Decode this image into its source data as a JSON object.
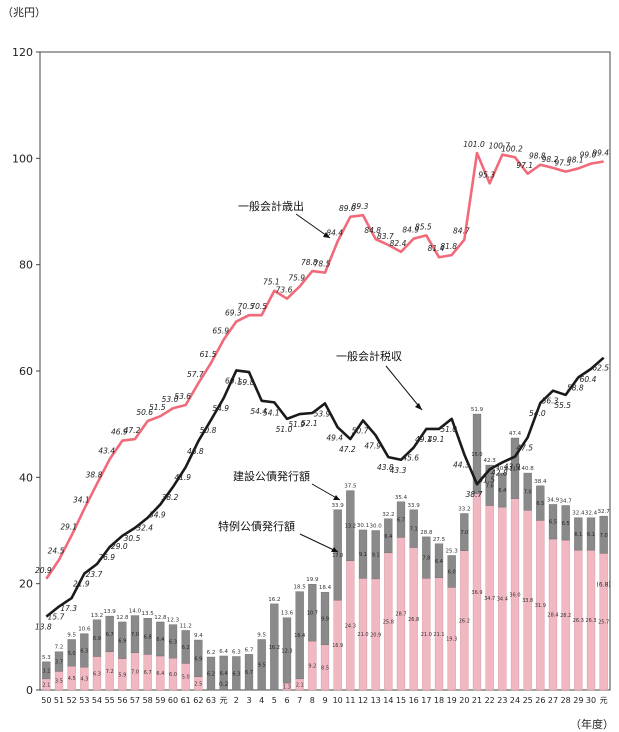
{
  "chart_data": {
    "type": "bar",
    "y_unit": "（兆円）",
    "x_unit": "（年度）",
    "ylim": [
      0,
      120
    ],
    "yticks": [
      0,
      20,
      40,
      60,
      80,
      100,
      120
    ],
    "grid": false,
    "categories": [
      "50",
      "51",
      "52",
      "53",
      "54",
      "55",
      "56",
      "57",
      "58",
      "59",
      "60",
      "61",
      "62",
      "63",
      "元",
      "2",
      "3",
      "4",
      "5",
      "6",
      "7",
      "8",
      "9",
      "10",
      "11",
      "12",
      "13",
      "14",
      "15",
      "16",
      "17",
      "18",
      "19",
      "20",
      "21",
      "22",
      "23",
      "24",
      "25",
      "26",
      "27",
      "28",
      "29",
      "30",
      "元"
    ],
    "special_era_label": "0.2",
    "series": [
      {
        "name": "一般会計歳出",
        "kind": "line",
        "color": "#f06a7a",
        "values": [
          20.9,
          24.5,
          29.1,
          34.1,
          38.8,
          43.4,
          46.9,
          47.2,
          50.6,
          51.5,
          53.0,
          53.6,
          57.7,
          61.5,
          65.9,
          69.3,
          70.5,
          70.5,
          75.1,
          73.6,
          75.9,
          78.8,
          78.5,
          84.4,
          89.0,
          89.3,
          84.8,
          83.7,
          82.4,
          84.9,
          85.5,
          81.4,
          81.8,
          84.7,
          101.0,
          95.3,
          100.7,
          100.2,
          97.1,
          98.8,
          98.2,
          97.5,
          98.1,
          99.0,
          99.4
        ]
      },
      {
        "name": "一般会計税収",
        "kind": "line",
        "color": "#1a1a1a",
        "values": [
          13.8,
          15.7,
          17.3,
          21.9,
          23.7,
          26.9,
          29.0,
          30.5,
          32.4,
          34.9,
          38.2,
          41.9,
          46.8,
          50.8,
          54.9,
          60.1,
          59.8,
          54.4,
          54.1,
          51.0,
          51.9,
          52.1,
          53.9,
          49.4,
          47.2,
          50.7,
          47.9,
          43.8,
          43.3,
          45.6,
          49.1,
          49.1,
          51.0,
          44.3,
          38.7,
          41.5,
          42.8,
          43.9,
          47.5,
          54.0,
          56.3,
          55.5,
          58.8,
          60.4,
          62.5
        ]
      },
      {
        "name": "建設公債発行額",
        "kind": "bar",
        "color": "#8a8a8a",
        "values": [
          3.2,
          3.7,
          5.0,
          6.3,
          6.9,
          6.7,
          6.9,
          7.0,
          6.8,
          6.4,
          6.3,
          6.2,
          6.9,
          6.2,
          6.4,
          6.3,
          6.7,
          9.5,
          16.2,
          12.3,
          16.4,
          10.7,
          9.9,
          17.0,
          13.2,
          9.1,
          9.1,
          6.4,
          6.7,
          7.1,
          7.8,
          6.4,
          6.0,
          7.0,
          15.0,
          7.6,
          6.4,
          11.4,
          7.0,
          6.5,
          6.5,
          6.5,
          6.1,
          6.1,
          7.0
        ]
      },
      {
        "name": "特例公債発行額",
        "kind": "bar",
        "color": "#f2b8c2",
        "values": [
          2.1,
          3.5,
          4.5,
          4.3,
          6.3,
          7.2,
          5.9,
          7.0,
          6.7,
          6.4,
          6.0,
          5.0,
          2.5,
          0,
          0,
          0,
          0,
          0,
          0,
          1.3,
          2.1,
          9.2,
          8.5,
          16.9,
          24.3,
          21.0,
          20.9,
          25.8,
          28.7,
          26.8,
          21.0,
          21.1,
          19.3,
          26.2,
          36.9,
          34.7,
          34.4,
          36.0,
          33.8,
          31.9,
          28.4,
          28.2,
          26.3,
          26.3,
          25.7
        ]
      }
    ],
    "extra_labels": [
      "(6.8)"
    ],
    "annotations": [
      "一般会計歳出",
      "一般会計税収",
      "建設公債発行額",
      "特例公債発行額"
    ]
  }
}
